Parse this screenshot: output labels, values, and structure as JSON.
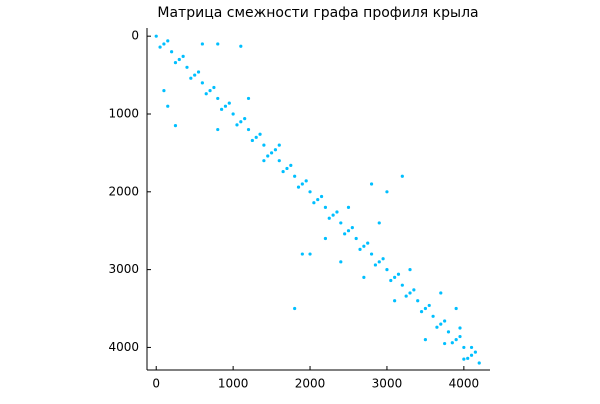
{
  "chart_data": {
    "type": "scatter",
    "title": "Матрица смежности графа профиля крыла",
    "xlim": [
      -120,
      4340
    ],
    "ylim": [
      -105,
      4290
    ],
    "y_reversed": true,
    "xticks": [
      0,
      1000,
      2000,
      3000,
      4000
    ],
    "yticks": [
      0,
      1000,
      2000,
      3000,
      4000
    ],
    "grid": false,
    "series": [
      {
        "color": "#00bfff",
        "x": [
          0,
          100,
          200,
          300,
          400,
          500,
          600,
          700,
          800,
          900,
          1000,
          1100,
          1200,
          1300,
          1400,
          1500,
          1600,
          1700,
          1800,
          1900,
          2000,
          2100,
          2200,
          2300,
          2400,
          2500,
          2600,
          2700,
          2800,
          2900,
          3000,
          3100,
          3200,
          3300,
          3400,
          3500,
          3600,
          3700,
          3800,
          3900,
          4000,
          4100,
          4200,
          50,
          250,
          450,
          650,
          850,
          1050,
          1250,
          1450,
          1650,
          1850,
          2050,
          2250,
          2450,
          2650,
          2850,
          3050,
          3250,
          3450,
          3650,
          3850,
          4050,
          150,
          350,
          550,
          750,
          950,
          1150,
          1350,
          1550,
          1750,
          1950,
          2150,
          2350,
          2550,
          2750,
          2950,
          3150,
          3350,
          3550,
          3750,
          3950,
          4150,
          600,
          800,
          1100,
          100,
          150,
          250,
          2000,
          2200,
          2800,
          3000,
          3200,
          1900,
          2700,
          3100,
          2500,
          3300,
          1800,
          3700,
          3500,
          3900,
          1200,
          800,
          1600,
          1400,
          2400,
          2900,
          3950,
          3750,
          4100,
          4000
        ],
        "y": [
          0,
          100,
          200,
          300,
          400,
          500,
          600,
          700,
          800,
          900,
          1000,
          1100,
          1200,
          1300,
          1400,
          1500,
          1600,
          1700,
          1800,
          1900,
          2000,
          2100,
          2200,
          2300,
          2400,
          2500,
          2600,
          2700,
          2800,
          2900,
          3000,
          3100,
          3200,
          3300,
          3400,
          3500,
          3600,
          3700,
          3800,
          3900,
          4000,
          4100,
          4200,
          140,
          340,
          540,
          740,
          940,
          1140,
          1340,
          1540,
          1740,
          1940,
          2140,
          2340,
          2540,
          2740,
          2940,
          3140,
          3340,
          3540,
          3740,
          3940,
          4140,
          60,
          260,
          460,
          660,
          860,
          1060,
          1260,
          1460,
          1660,
          1860,
          2060,
          2260,
          2460,
          2660,
          2860,
          3060,
          3260,
          3460,
          3660,
          3860,
          4060,
          100,
          100,
          130,
          700,
          900,
          1150,
          2800,
          2600,
          1900,
          2000,
          1800,
          2800,
          3100,
          3400,
          2200,
          3000,
          3500,
          3300,
          3900,
          3500,
          800,
          1200,
          1400,
          1600,
          2900,
          2400,
          3750,
          3950,
          4000,
          4150
        ]
      }
    ]
  }
}
